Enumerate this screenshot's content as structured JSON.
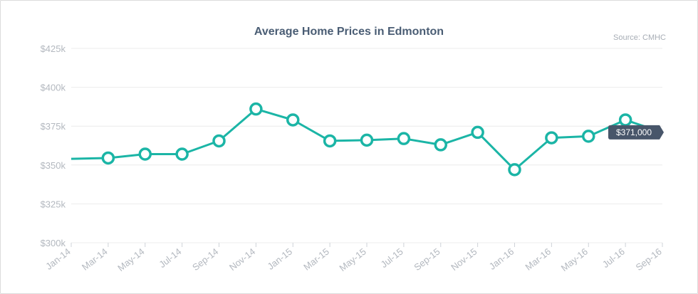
{
  "colors": {
    "line": "#1bb5a6",
    "grid": "#ececec",
    "tooltip_bg": "#48566a",
    "title": "#4a5d74"
  },
  "chart_data": {
    "type": "line",
    "title": "Average Home Prices in Edmonton",
    "source": "Source: CMHC",
    "y_tick_labels": [
      "$300k",
      "$325k",
      "$350k",
      "$375k",
      "$400k",
      "$425k"
    ],
    "y_ticks": [
      300000,
      325000,
      350000,
      375000,
      400000,
      425000
    ],
    "ylim": [
      300000,
      425000
    ],
    "x_tick_labels": [
      "Jan-14",
      "Mar-14",
      "May-14",
      "Jul-14",
      "Sep-14",
      "Nov-14",
      "Jan-15",
      "Mar-15",
      "May-15",
      "Jul-15",
      "Sep-15",
      "Nov-15",
      "Jan-16",
      "Mar-16",
      "May-16",
      "Jul-16",
      "Sep-16"
    ],
    "series": [
      {
        "points": [
          {
            "x": "Jan-14",
            "y": 354000,
            "marker": false
          },
          {
            "x": "Mar-14",
            "y": 354500,
            "marker": true
          },
          {
            "x": "May-14",
            "y": 357000,
            "marker": true
          },
          {
            "x": "Jul-14",
            "y": 357000,
            "marker": true
          },
          {
            "x": "Sep-14",
            "y": 365500,
            "marker": true
          },
          {
            "x": "Nov-14",
            "y": 386000,
            "marker": true
          },
          {
            "x": "Jan-15",
            "y": 379000,
            "marker": true
          },
          {
            "x": "Mar-15",
            "y": 365500,
            "marker": true
          },
          {
            "x": "May-15",
            "y": 366000,
            "marker": true
          },
          {
            "x": "Jul-15",
            "y": 367000,
            "marker": true
          },
          {
            "x": "Sep-15",
            "y": 363000,
            "marker": true
          },
          {
            "x": "Nov-15",
            "y": 371000,
            "marker": true
          },
          {
            "x": "Jan-16",
            "y": 347000,
            "marker": true
          },
          {
            "x": "Mar-16",
            "y": 367500,
            "marker": true
          },
          {
            "x": "May-16",
            "y": 368500,
            "marker": true
          },
          {
            "x": "Jul-16",
            "y": 379000,
            "marker": true
          },
          {
            "x": "Sep-16",
            "y": 371000,
            "marker": false
          }
        ]
      }
    ],
    "grid": true,
    "tooltip": {
      "x": "Sep-16",
      "text": "$371,000"
    }
  }
}
